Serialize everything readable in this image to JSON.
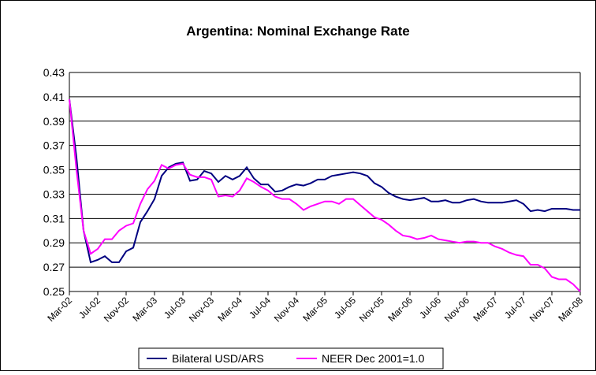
{
  "chart_data": {
    "type": "line",
    "title": "Argentina: Nominal Exchange Rate",
    "categories": [
      "Mar-02",
      null,
      null,
      null,
      "Jul-02",
      null,
      null,
      null,
      "Nov-02",
      null,
      null,
      null,
      "Mar-03",
      null,
      null,
      null,
      "Jul-03",
      null,
      null,
      null,
      "Nov-03",
      null,
      null,
      null,
      "Mar-04",
      null,
      null,
      null,
      "Jul-04",
      null,
      null,
      null,
      "Nov-04",
      null,
      null,
      null,
      "Mar-05",
      null,
      null,
      null,
      "Jul-05",
      null,
      null,
      null,
      "Nov-05",
      null,
      null,
      null,
      "Mar-06",
      null,
      null,
      null,
      "Jul-06",
      null,
      null,
      null,
      "Nov-06",
      null,
      null,
      null,
      "Mar-07",
      null,
      null,
      null,
      "Jul-07",
      null,
      null,
      null,
      "Nov-07",
      null,
      null,
      null,
      "Mar-08"
    ],
    "series": [
      {
        "name": "Bilateral USD/ARS",
        "color": "#000080",
        "values": [
          0.408,
          0.36,
          0.3,
          0.274,
          0.276,
          0.279,
          0.274,
          0.274,
          0.283,
          0.286,
          0.307,
          0.316,
          0.326,
          0.345,
          0.352,
          0.355,
          0.356,
          0.341,
          0.342,
          0.349,
          0.347,
          0.34,
          0.345,
          0.342,
          0.345,
          0.352,
          0.343,
          0.338,
          0.338,
          0.332,
          0.333,
          0.336,
          0.338,
          0.337,
          0.339,
          0.342,
          0.342,
          0.345,
          0.346,
          0.347,
          0.348,
          0.347,
          0.345,
          0.339,
          0.336,
          0.331,
          0.328,
          0.326,
          0.325,
          0.326,
          0.327,
          0.324,
          0.324,
          0.325,
          0.323,
          0.323,
          0.325,
          0.326,
          0.324,
          0.323,
          0.323,
          0.323,
          0.324,
          0.325,
          0.322,
          0.316,
          0.317,
          0.316,
          0.318,
          0.318,
          0.318,
          0.317,
          0.317
        ]
      },
      {
        "name": "NEER Dec 2001=1.0",
        "color": "#ff00ff",
        "values": [
          0.408,
          0.35,
          0.3,
          0.281,
          0.285,
          0.293,
          0.293,
          0.3,
          0.304,
          0.306,
          0.322,
          0.334,
          0.341,
          0.354,
          0.351,
          0.354,
          0.355,
          0.346,
          0.344,
          0.344,
          0.342,
          0.328,
          0.329,
          0.328,
          0.333,
          0.343,
          0.34,
          0.336,
          0.333,
          0.328,
          0.326,
          0.326,
          0.322,
          0.317,
          0.32,
          0.322,
          0.324,
          0.324,
          0.322,
          0.326,
          0.326,
          0.321,
          0.316,
          0.311,
          0.309,
          0.305,
          0.3,
          0.296,
          0.295,
          0.293,
          0.294,
          0.296,
          0.293,
          0.292,
          0.291,
          0.29,
          0.291,
          0.291,
          0.29,
          0.29,
          0.287,
          0.285,
          0.282,
          0.28,
          0.279,
          0.272,
          0.272,
          0.269,
          0.262,
          0.26,
          0.26,
          0.256,
          0.25
        ]
      }
    ],
    "ylim": [
      0.25,
      0.43
    ],
    "yticks": [
      0.25,
      0.27,
      0.29,
      0.31,
      0.33,
      0.35,
      0.37,
      0.39,
      0.41,
      0.43
    ],
    "grid": true,
    "legend": "bottom"
  }
}
